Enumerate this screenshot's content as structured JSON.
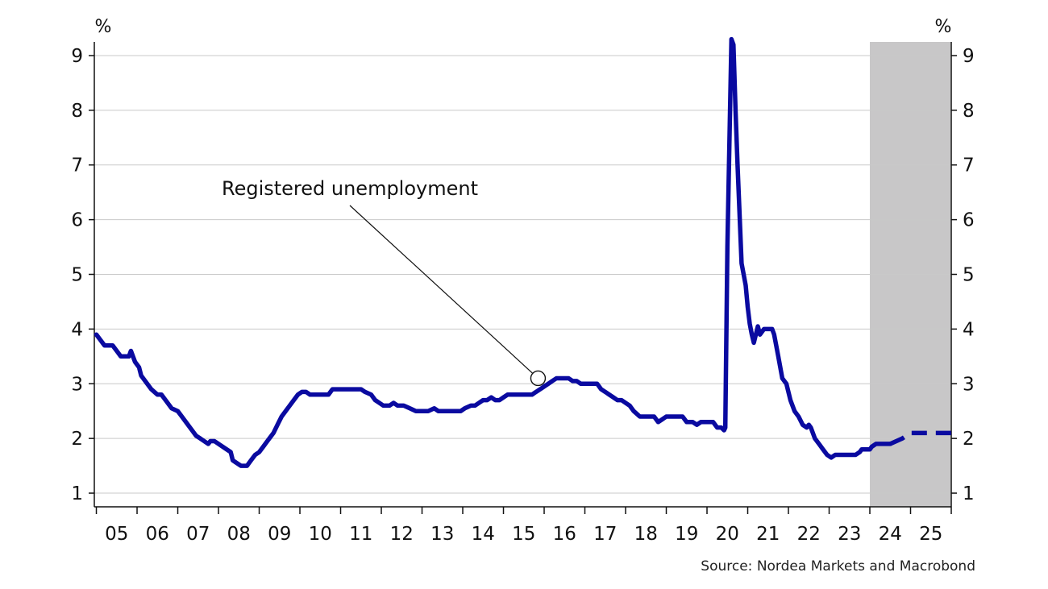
{
  "chart_data": {
    "type": "line",
    "title": "",
    "xlabel": "",
    "ylabel": "",
    "y_unit_left": "%",
    "y_unit_right": "%",
    "ylim": [
      0.75,
      9.25
    ],
    "xlim": [
      2004.95,
      2026.0
    ],
    "yticks": [
      1,
      2,
      3,
      4,
      5,
      6,
      7,
      8,
      9
    ],
    "xtick_labels": [
      "05",
      "06",
      "07",
      "08",
      "09",
      "10",
      "11",
      "12",
      "13",
      "14",
      "15",
      "16",
      "17",
      "18",
      "19",
      "20",
      "21",
      "22",
      "23",
      "24",
      "25"
    ],
    "grid": "horizontal",
    "forecast_shading": {
      "from": 2024.0,
      "to": 2026.0,
      "color": "#c8c7c8"
    },
    "annotation": {
      "text": "Registered unemployment",
      "target": {
        "x": 2015.85,
        "y": 3.1
      }
    },
    "source": "Source: Nordea Markets and Macrobond",
    "series": [
      {
        "style": "solid",
        "color": "#0a0aa0",
        "points": [
          [
            2005.0,
            3.9
          ],
          [
            2005.1,
            3.8
          ],
          [
            2005.2,
            3.7
          ],
          [
            2005.4,
            3.7
          ],
          [
            2005.5,
            3.6
          ],
          [
            2005.6,
            3.5
          ],
          [
            2005.8,
            3.5
          ],
          [
            2005.85,
            3.6
          ],
          [
            2005.95,
            3.4
          ],
          [
            2006.05,
            3.3
          ],
          [
            2006.1,
            3.15
          ],
          [
            2006.25,
            3.0
          ],
          [
            2006.35,
            2.9
          ],
          [
            2006.5,
            2.8
          ],
          [
            2006.6,
            2.8
          ],
          [
            2006.7,
            2.7
          ],
          [
            2006.85,
            2.55
          ],
          [
            2007.0,
            2.5
          ],
          [
            2007.1,
            2.4
          ],
          [
            2007.2,
            2.3
          ],
          [
            2007.3,
            2.2
          ],
          [
            2007.45,
            2.05
          ],
          [
            2007.55,
            2.0
          ],
          [
            2007.65,
            1.95
          ],
          [
            2007.75,
            1.9
          ],
          [
            2007.8,
            1.95
          ],
          [
            2007.9,
            1.95
          ],
          [
            2008.0,
            1.9
          ],
          [
            2008.1,
            1.85
          ],
          [
            2008.2,
            1.8
          ],
          [
            2008.3,
            1.75
          ],
          [
            2008.35,
            1.6
          ],
          [
            2008.45,
            1.55
          ],
          [
            2008.55,
            1.5
          ],
          [
            2008.7,
            1.5
          ],
          [
            2008.8,
            1.6
          ],
          [
            2008.9,
            1.7
          ],
          [
            2009.0,
            1.75
          ],
          [
            2009.1,
            1.85
          ],
          [
            2009.2,
            1.95
          ],
          [
            2009.35,
            2.1
          ],
          [
            2009.45,
            2.25
          ],
          [
            2009.55,
            2.4
          ],
          [
            2009.65,
            2.5
          ],
          [
            2009.75,
            2.6
          ],
          [
            2009.85,
            2.7
          ],
          [
            2009.95,
            2.8
          ],
          [
            2010.05,
            2.85
          ],
          [
            2010.15,
            2.85
          ],
          [
            2010.25,
            2.8
          ],
          [
            2010.4,
            2.8
          ],
          [
            2010.55,
            2.8
          ],
          [
            2010.7,
            2.8
          ],
          [
            2010.8,
            2.9
          ],
          [
            2011.0,
            2.9
          ],
          [
            2011.2,
            2.9
          ],
          [
            2011.4,
            2.9
          ],
          [
            2011.5,
            2.9
          ],
          [
            2011.6,
            2.85
          ],
          [
            2011.75,
            2.8
          ],
          [
            2011.85,
            2.7
          ],
          [
            2011.95,
            2.65
          ],
          [
            2012.05,
            2.6
          ],
          [
            2012.2,
            2.6
          ],
          [
            2012.3,
            2.65
          ],
          [
            2012.4,
            2.6
          ],
          [
            2012.55,
            2.6
          ],
          [
            2012.7,
            2.55
          ],
          [
            2012.85,
            2.5
          ],
          [
            2013.0,
            2.5
          ],
          [
            2013.15,
            2.5
          ],
          [
            2013.3,
            2.55
          ],
          [
            2013.4,
            2.5
          ],
          [
            2013.6,
            2.5
          ],
          [
            2013.8,
            2.5
          ],
          [
            2013.95,
            2.5
          ],
          [
            2014.05,
            2.55
          ],
          [
            2014.2,
            2.6
          ],
          [
            2014.3,
            2.6
          ],
          [
            2014.4,
            2.65
          ],
          [
            2014.5,
            2.7
          ],
          [
            2014.6,
            2.7
          ],
          [
            2014.7,
            2.75
          ],
          [
            2014.8,
            2.7
          ],
          [
            2014.9,
            2.7
          ],
          [
            2015.0,
            2.75
          ],
          [
            2015.1,
            2.8
          ],
          [
            2015.3,
            2.8
          ],
          [
            2015.5,
            2.8
          ],
          [
            2015.7,
            2.8
          ],
          [
            2015.8,
            2.85
          ],
          [
            2015.9,
            2.9
          ],
          [
            2016.0,
            2.95
          ],
          [
            2016.1,
            3.0
          ],
          [
            2016.2,
            3.05
          ],
          [
            2016.3,
            3.1
          ],
          [
            2016.5,
            3.1
          ],
          [
            2016.6,
            3.1
          ],
          [
            2016.7,
            3.05
          ],
          [
            2016.8,
            3.05
          ],
          [
            2016.9,
            3.0
          ],
          [
            2017.1,
            3.0
          ],
          [
            2017.3,
            3.0
          ],
          [
            2017.4,
            2.9
          ],
          [
            2017.5,
            2.85
          ],
          [
            2017.6,
            2.8
          ],
          [
            2017.7,
            2.75
          ],
          [
            2017.8,
            2.7
          ],
          [
            2017.9,
            2.7
          ],
          [
            2018.0,
            2.65
          ],
          [
            2018.1,
            2.6
          ],
          [
            2018.2,
            2.5
          ],
          [
            2018.35,
            2.4
          ],
          [
            2018.5,
            2.4
          ],
          [
            2018.7,
            2.4
          ],
          [
            2018.8,
            2.3
          ],
          [
            2018.9,
            2.35
          ],
          [
            2019.0,
            2.4
          ],
          [
            2019.2,
            2.4
          ],
          [
            2019.4,
            2.4
          ],
          [
            2019.5,
            2.3
          ],
          [
            2019.65,
            2.3
          ],
          [
            2019.75,
            2.25
          ],
          [
            2019.85,
            2.3
          ],
          [
            2020.0,
            2.3
          ],
          [
            2020.15,
            2.3
          ],
          [
            2020.25,
            2.2
          ],
          [
            2020.35,
            2.2
          ],
          [
            2020.42,
            2.15
          ],
          [
            2020.45,
            2.2
          ],
          [
            2020.5,
            5.5
          ],
          [
            2020.6,
            9.3
          ],
          [
            2020.65,
            9.2
          ],
          [
            2020.7,
            8.0
          ],
          [
            2020.75,
            7.0
          ],
          [
            2020.85,
            5.2
          ],
          [
            2020.95,
            4.8
          ],
          [
            2021.0,
            4.4
          ],
          [
            2021.05,
            4.1
          ],
          [
            2021.1,
            3.9
          ],
          [
            2021.15,
            3.75
          ],
          [
            2021.25,
            4.05
          ],
          [
            2021.3,
            3.9
          ],
          [
            2021.4,
            4.0
          ],
          [
            2021.6,
            4.0
          ],
          [
            2021.65,
            3.9
          ],
          [
            2021.75,
            3.5
          ],
          [
            2021.85,
            3.1
          ],
          [
            2021.95,
            3.0
          ],
          [
            2022.05,
            2.7
          ],
          [
            2022.15,
            2.5
          ],
          [
            2022.25,
            2.4
          ],
          [
            2022.35,
            2.25
          ],
          [
            2022.45,
            2.2
          ],
          [
            2022.5,
            2.25
          ],
          [
            2022.55,
            2.2
          ],
          [
            2022.65,
            2.0
          ],
          [
            2022.75,
            1.9
          ],
          [
            2022.85,
            1.8
          ],
          [
            2022.95,
            1.7
          ],
          [
            2023.05,
            1.65
          ],
          [
            2023.15,
            1.7
          ],
          [
            2023.3,
            1.7
          ],
          [
            2023.5,
            1.7
          ],
          [
            2023.65,
            1.7
          ],
          [
            2023.75,
            1.75
          ],
          [
            2023.8,
            1.8
          ],
          [
            2023.9,
            1.8
          ],
          [
            2024.0,
            1.8
          ],
          [
            2024.05,
            1.85
          ],
          [
            2024.15,
            1.9
          ],
          [
            2024.4,
            1.9
          ],
          [
            2024.5,
            1.9
          ]
        ]
      },
      {
        "style": "dashed",
        "color": "#0a0aa0",
        "points": [
          [
            2024.5,
            1.9
          ],
          [
            2024.8,
            2.0
          ],
          [
            2025.0,
            2.1
          ],
          [
            2025.5,
            2.1
          ],
          [
            2026.0,
            2.1
          ]
        ]
      }
    ]
  }
}
